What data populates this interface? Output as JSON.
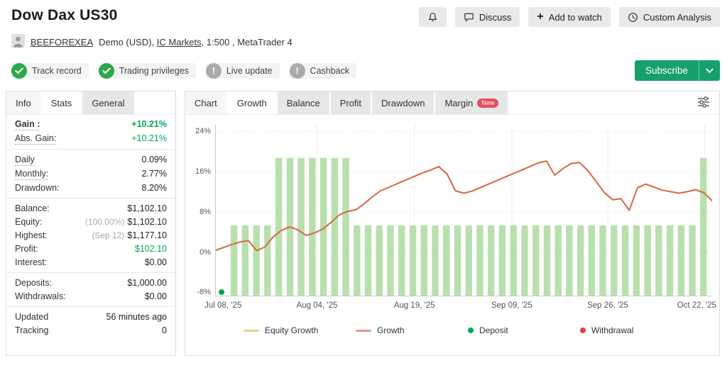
{
  "header": {
    "title": "Dow Dax US30",
    "account": {
      "user": "BEEFOREXEA",
      "pre": "Demo (USD),",
      "broker": "IC Markets",
      "post": ", 1:500 , MetaTrader 4"
    },
    "actions": {
      "discuss": "Discuss",
      "add_to_watch": "Add to watch",
      "custom_analysis": "Custom Analysis"
    },
    "badges": [
      {
        "label": "Track record",
        "status": "ok"
      },
      {
        "label": "Trading privileges",
        "status": "ok"
      },
      {
        "label": "Live update",
        "status": "warn"
      },
      {
        "label": "Cashback",
        "status": "warn"
      }
    ],
    "subscribe_label": "Subscribe"
  },
  "sidebar": {
    "tabs": [
      {
        "label": "Info",
        "first": true
      },
      {
        "label": "Stats",
        "active": true
      },
      {
        "label": "General"
      }
    ],
    "groups": [
      {
        "rows": [
          {
            "label": "Gain :",
            "value": "+10.21%",
            "label_style": "bold dotted",
            "value_style": "green bold"
          },
          {
            "label": "Abs. Gain:",
            "value": "+10.21%",
            "label_style": "dotted",
            "value_style": "green"
          }
        ]
      },
      {
        "rows": [
          {
            "label": "Daily",
            "value": "0.09%",
            "label_style": "dotted"
          },
          {
            "label": "Monthly:",
            "value": "2.77%",
            "label_style": "dotted"
          },
          {
            "label": "Drawdown:",
            "value": "8.20%"
          }
        ]
      },
      {
        "rows": [
          {
            "label": "Balance:",
            "value": "$1,102.10"
          },
          {
            "label": "Equity:",
            "value": "$1,102.10",
            "value_prefix": "(100.00%)"
          },
          {
            "label": "Highest:",
            "value": "$1,177.10",
            "value_prefix": "(Sep 12)"
          },
          {
            "label": "Profit:",
            "value": "$102.10",
            "value_style": "green"
          },
          {
            "label": "Interest:",
            "value": "$0.00"
          }
        ]
      },
      {
        "rows": [
          {
            "label": "Deposits:",
            "value": "$1,000.00"
          },
          {
            "label": "Withdrawals:",
            "value": "$0.00"
          }
        ]
      },
      {
        "rows": [
          {
            "label": "Updated",
            "value": "56 minutes ago"
          },
          {
            "label": "Tracking",
            "value": "0"
          }
        ]
      }
    ]
  },
  "chart": {
    "tabs": [
      {
        "label": "Chart",
        "first": true
      },
      {
        "label": "Growth",
        "active": true
      },
      {
        "label": "Balance"
      },
      {
        "label": "Profit"
      },
      {
        "label": "Drawdown"
      },
      {
        "label": "Margin",
        "badge": "New"
      }
    ]
  },
  "chart_data": {
    "type": "mixed",
    "title": "Growth",
    "ylim": [
      -8.8,
      25.3
    ],
    "yticks": [
      {
        "label": "24%",
        "value": 24
      },
      {
        "label": "16%",
        "value": 16
      },
      {
        "label": "8%",
        "value": 8
      },
      {
        "label": "0%",
        "value": 0
      },
      {
        "label": "-8%",
        "value": -8
      }
    ],
    "xticks": [
      {
        "label": "Jul 08, '25",
        "pos": 0.016
      },
      {
        "label": "Aug 04, '25",
        "pos": 0.205
      },
      {
        "label": "Aug 19, '25",
        "pos": 0.401
      },
      {
        "label": "Sep 09, '25",
        "pos": 0.597
      },
      {
        "label": "Sep 26, '25",
        "pos": 0.79
      },
      {
        "label": "Oct 22, '25",
        "pos": 0.985
      }
    ],
    "series": [
      {
        "name": "Growth",
        "type": "line",
        "color": "#d9663f",
        "values": [
          0.3,
          0.9,
          1.5,
          2.0,
          2.3,
          0.3,
          1.0,
          3.0,
          4.3,
          5.0,
          4.4,
          3.3,
          3.8,
          4.6,
          5.9,
          7.4,
          8.1,
          8.4,
          9.6,
          11.0,
          12.2,
          12.9,
          13.6,
          14.3,
          15.0,
          15.7,
          16.3,
          17.0,
          15.5,
          12.2,
          11.7,
          12.1,
          12.8,
          13.5,
          14.2,
          14.9,
          15.6,
          16.3,
          17.0,
          17.7,
          18.1,
          15.3,
          16.6,
          17.6,
          17.8,
          16.2,
          14.0,
          11.8,
          10.4,
          10.6,
          8.3,
          12.8,
          13.5,
          12.9,
          12.3,
          12.0,
          11.7,
          12.0,
          12.4,
          11.8,
          10.2
        ]
      },
      {
        "name": "Equity Growth",
        "type": "bar",
        "color": "#b8e0ae",
        "baseline": -8.8,
        "values": [
          5.3,
          5.3,
          5.3,
          5.3,
          18.7,
          18.7,
          18.7,
          18.7,
          18.7,
          18.7,
          18.7,
          5.3,
          5.3,
          5.3,
          5.3,
          5.3,
          5.3,
          5.3,
          5.3,
          5.3,
          5.3,
          5.3,
          5.3,
          5.3,
          5.3,
          5.3,
          5.3,
          5.3,
          5.3,
          5.3,
          5.3,
          5.3,
          5.3,
          5.3,
          5.3,
          5.3,
          5.3,
          5.3,
          5.3,
          5.3,
          5.3,
          5.3,
          18.7
        ]
      }
    ],
    "markers": [
      {
        "name": "Deposit",
        "color": "#00a651",
        "pos": 0.013,
        "value": -8
      }
    ],
    "legend": [
      {
        "label": "Equity Growth",
        "swatch": "line",
        "color": "#e9d28f"
      },
      {
        "label": "Growth",
        "swatch": "line",
        "color": "#de9a94"
      },
      {
        "label": "Deposit",
        "swatch": "dot",
        "color": "#00a651"
      },
      {
        "label": "Withdrawal",
        "swatch": "dot",
        "color": "#e23d3d"
      }
    ],
    "colors": {
      "accent_green": "#00a651",
      "subscribe_green": "#17a06b",
      "new_badge_red": "#e04f5f"
    }
  }
}
